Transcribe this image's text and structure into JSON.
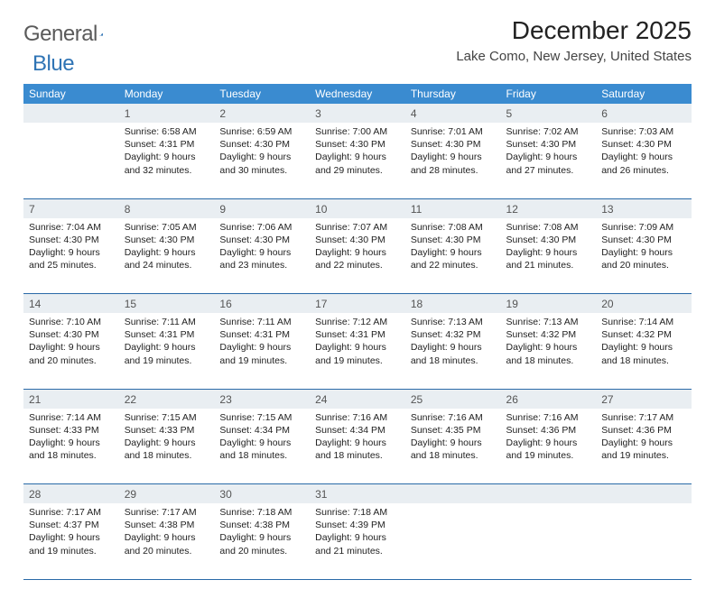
{
  "logo": {
    "word1": "General",
    "word2": "Blue",
    "tri_color": "#2f74b5"
  },
  "title": "December 2025",
  "location": "Lake Como, New Jersey, United States",
  "header_bg": "#3a8bd0",
  "header_text": "#ffffff",
  "daynum_bg": "#e9eef2",
  "row_border": "#2a6aa8",
  "body_fontsize": 10.5,
  "weekdays": [
    "Sunday",
    "Monday",
    "Tuesday",
    "Wednesday",
    "Thursday",
    "Friday",
    "Saturday"
  ],
  "weeks": [
    {
      "nums": [
        "",
        "1",
        "2",
        "3",
        "4",
        "5",
        "6"
      ],
      "cells": [
        null,
        {
          "sunrise": "6:58 AM",
          "sunset": "4:31 PM",
          "dl": "9 hours and 32 minutes."
        },
        {
          "sunrise": "6:59 AM",
          "sunset": "4:30 PM",
          "dl": "9 hours and 30 minutes."
        },
        {
          "sunrise": "7:00 AM",
          "sunset": "4:30 PM",
          "dl": "9 hours and 29 minutes."
        },
        {
          "sunrise": "7:01 AM",
          "sunset": "4:30 PM",
          "dl": "9 hours and 28 minutes."
        },
        {
          "sunrise": "7:02 AM",
          "sunset": "4:30 PM",
          "dl": "9 hours and 27 minutes."
        },
        {
          "sunrise": "7:03 AM",
          "sunset": "4:30 PM",
          "dl": "9 hours and 26 minutes."
        }
      ]
    },
    {
      "nums": [
        "7",
        "8",
        "9",
        "10",
        "11",
        "12",
        "13"
      ],
      "cells": [
        {
          "sunrise": "7:04 AM",
          "sunset": "4:30 PM",
          "dl": "9 hours and 25 minutes."
        },
        {
          "sunrise": "7:05 AM",
          "sunset": "4:30 PM",
          "dl": "9 hours and 24 minutes."
        },
        {
          "sunrise": "7:06 AM",
          "sunset": "4:30 PM",
          "dl": "9 hours and 23 minutes."
        },
        {
          "sunrise": "7:07 AM",
          "sunset": "4:30 PM",
          "dl": "9 hours and 22 minutes."
        },
        {
          "sunrise": "7:08 AM",
          "sunset": "4:30 PM",
          "dl": "9 hours and 22 minutes."
        },
        {
          "sunrise": "7:08 AM",
          "sunset": "4:30 PM",
          "dl": "9 hours and 21 minutes."
        },
        {
          "sunrise": "7:09 AM",
          "sunset": "4:30 PM",
          "dl": "9 hours and 20 minutes."
        }
      ]
    },
    {
      "nums": [
        "14",
        "15",
        "16",
        "17",
        "18",
        "19",
        "20"
      ],
      "cells": [
        {
          "sunrise": "7:10 AM",
          "sunset": "4:30 PM",
          "dl": "9 hours and 20 minutes."
        },
        {
          "sunrise": "7:11 AM",
          "sunset": "4:31 PM",
          "dl": "9 hours and 19 minutes."
        },
        {
          "sunrise": "7:11 AM",
          "sunset": "4:31 PM",
          "dl": "9 hours and 19 minutes."
        },
        {
          "sunrise": "7:12 AM",
          "sunset": "4:31 PM",
          "dl": "9 hours and 19 minutes."
        },
        {
          "sunrise": "7:13 AM",
          "sunset": "4:32 PM",
          "dl": "9 hours and 18 minutes."
        },
        {
          "sunrise": "7:13 AM",
          "sunset": "4:32 PM",
          "dl": "9 hours and 18 minutes."
        },
        {
          "sunrise": "7:14 AM",
          "sunset": "4:32 PM",
          "dl": "9 hours and 18 minutes."
        }
      ]
    },
    {
      "nums": [
        "21",
        "22",
        "23",
        "24",
        "25",
        "26",
        "27"
      ],
      "cells": [
        {
          "sunrise": "7:14 AM",
          "sunset": "4:33 PM",
          "dl": "9 hours and 18 minutes."
        },
        {
          "sunrise": "7:15 AM",
          "sunset": "4:33 PM",
          "dl": "9 hours and 18 minutes."
        },
        {
          "sunrise": "7:15 AM",
          "sunset": "4:34 PM",
          "dl": "9 hours and 18 minutes."
        },
        {
          "sunrise": "7:16 AM",
          "sunset": "4:34 PM",
          "dl": "9 hours and 18 minutes."
        },
        {
          "sunrise": "7:16 AM",
          "sunset": "4:35 PM",
          "dl": "9 hours and 18 minutes."
        },
        {
          "sunrise": "7:16 AM",
          "sunset": "4:36 PM",
          "dl": "9 hours and 19 minutes."
        },
        {
          "sunrise": "7:17 AM",
          "sunset": "4:36 PM",
          "dl": "9 hours and 19 minutes."
        }
      ]
    },
    {
      "nums": [
        "28",
        "29",
        "30",
        "31",
        "",
        "",
        ""
      ],
      "cells": [
        {
          "sunrise": "7:17 AM",
          "sunset": "4:37 PM",
          "dl": "9 hours and 19 minutes."
        },
        {
          "sunrise": "7:17 AM",
          "sunset": "4:38 PM",
          "dl": "9 hours and 20 minutes."
        },
        {
          "sunrise": "7:18 AM",
          "sunset": "4:38 PM",
          "dl": "9 hours and 20 minutes."
        },
        {
          "sunrise": "7:18 AM",
          "sunset": "4:39 PM",
          "dl": "9 hours and 21 minutes."
        },
        null,
        null,
        null
      ]
    }
  ],
  "labels": {
    "sunrise": "Sunrise:",
    "sunset": "Sunset:",
    "daylight": "Daylight:"
  }
}
